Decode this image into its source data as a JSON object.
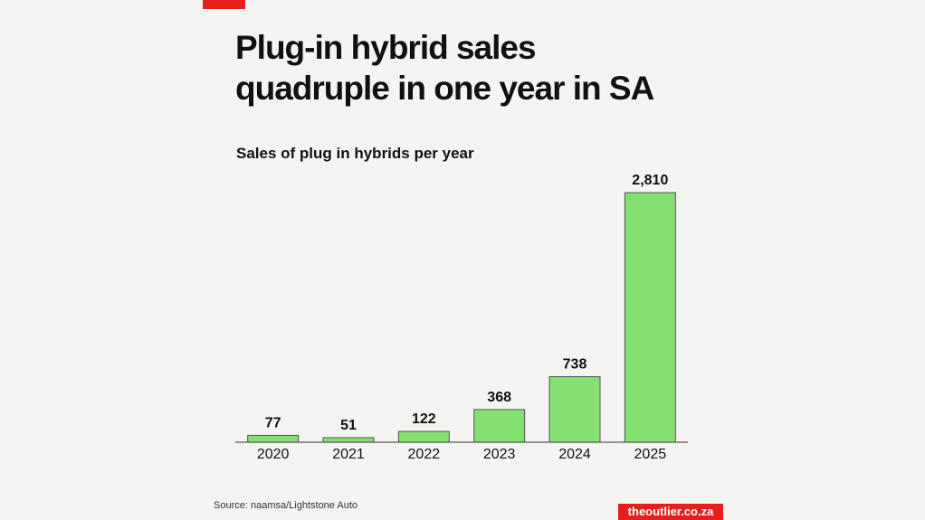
{
  "chart_data": {
    "type": "bar",
    "title": "Plug-in hybrid sales quadruple in one year in SA",
    "subtitle": "Sales of plug in hybrids per year",
    "categories": [
      "2020",
      "2021",
      "2022",
      "2023",
      "2024",
      "2025"
    ],
    "values": [
      77,
      51,
      122,
      368,
      738,
      2810
    ],
    "value_labels": [
      "77",
      "51",
      "122",
      "368",
      "738",
      "2,810"
    ],
    "color": "#84e070",
    "source": "Source: naamsa/Lightstone Auto",
    "logo": "theoutlier.co.za"
  }
}
